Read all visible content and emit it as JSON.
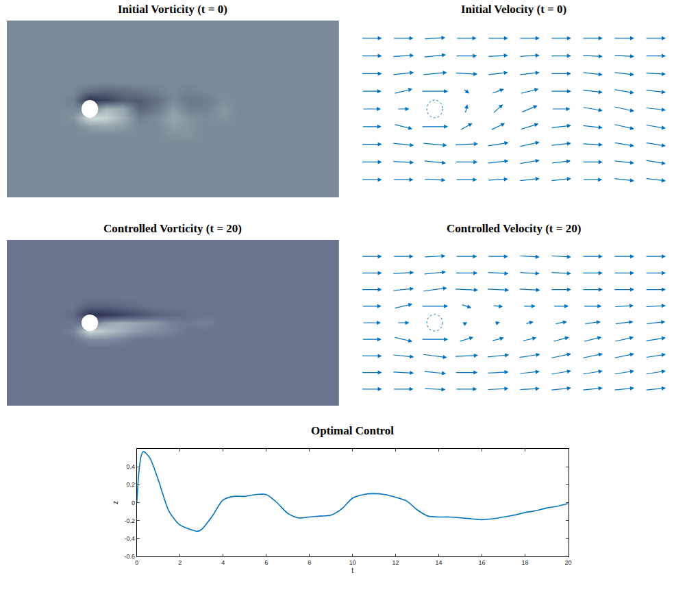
{
  "chart_data": [
    {
      "type": "heatmap",
      "title": "Initial Vorticity (t = 0)",
      "tick_labels": false,
      "color": "#7a8a96",
      "xlim": [
        0,
        20
      ],
      "ylim": [
        -5,
        5
      ],
      "zlim": [
        -1,
        1
      ],
      "cylinder": {
        "x": 5,
        "y": 0,
        "r": 0.5
      },
      "x": [
        0,
        3,
        4,
        5,
        6,
        7,
        8,
        9,
        10,
        11,
        12,
        13,
        14,
        16,
        20
      ],
      "y": [
        -5,
        -2,
        -1.5,
        -1,
        -0.5,
        0,
        0.5,
        1,
        1.5,
        2,
        5
      ],
      "z": [
        [
          0,
          0,
          0,
          0,
          0,
          0,
          0,
          0,
          0,
          0,
          0,
          0,
          0,
          0,
          0
        ],
        [
          0,
          0,
          0,
          0,
          0,
          0,
          0,
          0,
          0,
          0,
          0,
          0,
          0,
          0,
          0
        ],
        [
          0,
          0,
          0,
          0,
          0,
          0,
          0,
          0,
          0.1,
          0.1,
          0,
          0,
          0,
          0,
          0
        ],
        [
          0,
          0,
          0,
          0.2,
          0.3,
          0.2,
          0,
          0,
          0.2,
          0.1,
          0,
          0,
          0,
          0,
          0
        ],
        [
          0,
          0,
          0.1,
          0.9,
          0.8,
          0.4,
          -0.1,
          0,
          0.3,
          0.1,
          0,
          0.1,
          0,
          0,
          0
        ],
        [
          0,
          0,
          0,
          0,
          0.5,
          0.3,
          -0.4,
          -0.2,
          0.2,
          -0.1,
          -0.1,
          0.15,
          0,
          0,
          0
        ],
        [
          0,
          0,
          -0.1,
          -1,
          -0.8,
          -0.5,
          -0.5,
          -0.3,
          0,
          -0.2,
          -0.15,
          0.05,
          0,
          0,
          0
        ],
        [
          0,
          0,
          0,
          -0.3,
          -0.4,
          -0.3,
          -0.2,
          -0.1,
          0,
          -0.1,
          0,
          0,
          0,
          0,
          0
        ],
        [
          0,
          0,
          0,
          0,
          0,
          0,
          0,
          0,
          0,
          0,
          0,
          0,
          0,
          0,
          0
        ],
        [
          0,
          0,
          0,
          0,
          0,
          0,
          0,
          0,
          0,
          0,
          0,
          0,
          0,
          0,
          0
        ],
        [
          0,
          0,
          0,
          0,
          0,
          0,
          0,
          0,
          0,
          0,
          0,
          0,
          0,
          0,
          0
        ]
      ]
    },
    {
      "type": "quiver",
      "title": "Initial Velocity (t = 0)",
      "tick_labels": false,
      "color": "#0072bd",
      "xlim": [
        0,
        20
      ],
      "ylim": [
        -5,
        5
      ],
      "cylinder": {
        "x": 5,
        "y": 0,
        "r": 0.5
      },
      "x": [
        1,
        3,
        5,
        7,
        9,
        11,
        13,
        15,
        17,
        19
      ],
      "y": [
        -4,
        -3,
        -2,
        -1,
        0,
        1,
        2,
        3,
        4
      ],
      "u": [
        [
          1,
          1,
          1.05,
          1.05,
          1,
          1,
          1,
          0.95,
          1,
          1
        ],
        [
          1,
          1.05,
          1.1,
          1.1,
          1.05,
          1,
          0.95,
          1,
          1,
          1
        ],
        [
          1,
          1.05,
          1.2,
          1.15,
          1.05,
          1,
          1,
          1,
          1,
          1
        ],
        [
          0.95,
          0.9,
          1.3,
          0.6,
          0.7,
          0.9,
          1,
          1,
          1,
          1
        ],
        [
          0.9,
          0.6,
          null,
          0.1,
          0.5,
          0.8,
          0.9,
          1,
          1,
          1
        ],
        [
          0.95,
          0.9,
          1.3,
          0.3,
          0.6,
          0.9,
          1,
          1,
          1,
          1
        ],
        [
          1,
          1.05,
          1.2,
          1.1,
          1,
          1,
          1,
          1,
          1,
          1
        ],
        [
          1,
          1.05,
          1.1,
          1.05,
          1,
          1,
          1,
          1,
          1,
          1
        ],
        [
          1,
          1,
          1.05,
          1,
          1,
          1,
          1,
          1,
          1,
          1
        ]
      ],
      "v": [
        [
          0,
          0,
          -0.05,
          0,
          0.05,
          0.1,
          0.1,
          0,
          -0.1,
          -0.1
        ],
        [
          0,
          -0.05,
          -0.1,
          0,
          0.1,
          0.15,
          0.1,
          0,
          -0.1,
          -0.15
        ],
        [
          0,
          -0.1,
          -0.1,
          0.05,
          0.15,
          0.2,
          0.1,
          -0.05,
          -0.15,
          -0.15
        ],
        [
          0,
          -0.2,
          0,
          0.3,
          0.3,
          0.25,
          0.1,
          -0.1,
          -0.2,
          -0.15
        ],
        [
          0,
          0,
          null,
          0.4,
          0.4,
          0.3,
          0,
          -0.15,
          -0.2,
          -0.1
        ],
        [
          0,
          0.2,
          0,
          -0.2,
          0.2,
          0.2,
          0,
          -0.1,
          -0.15,
          -0.1
        ],
        [
          0,
          0.1,
          0.1,
          -0.05,
          0.1,
          0.1,
          0,
          -0.1,
          -0.1,
          -0.05
        ],
        [
          0,
          0.05,
          0.1,
          0,
          0.05,
          0.05,
          0,
          -0.05,
          -0.05,
          0
        ],
        [
          0,
          0,
          0.05,
          0,
          0,
          0,
          0,
          0,
          0,
          0
        ]
      ]
    },
    {
      "type": "heatmap",
      "title": "Controlled Vorticity (t = 20)",
      "tick_labels": false,
      "color": "#6c7590",
      "xlim": [
        0,
        20
      ],
      "ylim": [
        -5,
        5
      ],
      "zlim": [
        -1,
        1
      ],
      "cylinder": {
        "x": 5,
        "y": 0,
        "r": 0.5
      },
      "x": [
        0,
        3,
        4,
        5,
        6,
        7,
        8,
        9,
        10,
        11,
        12,
        13,
        14,
        16,
        20
      ],
      "y": [
        -5,
        -2,
        -1.5,
        -1,
        -0.5,
        0,
        0.5,
        1,
        1.5,
        2,
        5
      ],
      "z": [
        [
          0,
          0,
          0,
          0,
          0,
          0,
          0,
          0,
          0,
          0,
          0,
          0,
          0,
          0,
          0
        ],
        [
          0,
          0,
          0,
          0,
          0,
          0,
          0,
          0,
          0,
          0,
          0,
          0,
          0,
          0,
          0
        ],
        [
          0,
          0,
          0,
          0,
          0,
          0,
          0,
          0,
          0,
          0,
          0,
          0,
          0,
          0,
          0
        ],
        [
          0,
          0,
          0,
          0.2,
          0.2,
          0.1,
          0,
          0,
          0,
          0,
          0,
          0,
          0,
          0,
          0
        ],
        [
          0,
          0,
          0.1,
          0.9,
          0.7,
          0.5,
          0.3,
          0.2,
          0.1,
          0,
          0,
          0,
          0,
          0,
          0
        ],
        [
          0,
          0,
          0,
          0,
          0.4,
          0.5,
          0.4,
          0.3,
          0.1,
          0.05,
          0.1,
          0,
          0,
          0,
          0
        ],
        [
          0,
          0,
          -0.1,
          -1,
          -0.9,
          -0.7,
          -0.5,
          -0.3,
          -0.15,
          -0.05,
          0,
          0,
          0,
          0,
          0
        ],
        [
          0,
          0,
          0,
          -0.3,
          -0.3,
          -0.2,
          -0.1,
          0,
          0,
          0,
          0,
          0,
          0,
          0,
          0
        ],
        [
          0,
          0,
          0,
          0,
          0,
          0,
          0,
          0,
          0,
          0,
          0,
          0,
          0,
          0,
          0
        ],
        [
          0,
          0,
          0,
          0,
          0,
          0,
          0,
          0,
          0,
          0,
          0,
          0,
          0,
          0,
          0
        ],
        [
          0,
          0,
          0,
          0,
          0,
          0,
          0,
          0,
          0,
          0,
          0,
          0,
          0,
          0,
          0
        ]
      ]
    },
    {
      "type": "quiver",
      "title": "Controlled Velocity (t = 20)",
      "tick_labels": false,
      "color": "#0072bd",
      "xlim": [
        0,
        20
      ],
      "ylim": [
        -5,
        5
      ],
      "cylinder": {
        "x": 5,
        "y": 0,
        "r": 0.5
      },
      "x": [
        1,
        3,
        5,
        7,
        9,
        11,
        13,
        15,
        17,
        19
      ],
      "y": [
        -4,
        -3,
        -2,
        -1,
        0,
        1,
        2,
        3,
        4
      ],
      "u": [
        [
          1,
          1,
          1.05,
          1.05,
          1.05,
          1,
          1,
          1,
          1,
          1
        ],
        [
          1,
          1.05,
          1.1,
          1.1,
          1.05,
          1,
          1,
          1,
          1,
          1
        ],
        [
          1,
          1.05,
          1.2,
          1.15,
          1.1,
          1.05,
          1,
          1,
          1,
          1
        ],
        [
          0.95,
          0.9,
          1.3,
          0.7,
          0.6,
          0.7,
          0.8,
          0.9,
          0.95,
          1
        ],
        [
          0.9,
          0.6,
          null,
          0.1,
          0.2,
          0.4,
          0.6,
          0.8,
          0.9,
          0.95
        ],
        [
          0.95,
          0.9,
          1.3,
          0.5,
          0.5,
          0.6,
          0.75,
          0.9,
          0.95,
          1
        ],
        [
          1,
          1.05,
          1.2,
          1.15,
          1.1,
          1.05,
          1,
          1,
          1,
          1
        ],
        [
          1,
          1.05,
          1.1,
          1.1,
          1.05,
          1,
          1,
          1,
          1,
          1
        ],
        [
          1,
          1,
          1.05,
          1.05,
          1,
          1,
          1,
          1,
          1,
          1
        ]
      ],
      "v": [
        [
          0,
          0,
          -0.05,
          0,
          0.05,
          0.05,
          0.1,
          0.1,
          0.1,
          0.1
        ],
        [
          0,
          -0.05,
          -0.1,
          0,
          0.05,
          0.1,
          0.15,
          0.15,
          0.15,
          0.15
        ],
        [
          0,
          -0.1,
          -0.15,
          0.05,
          0.1,
          0.15,
          0.2,
          0.2,
          0.2,
          0.15
        ],
        [
          0,
          -0.2,
          0,
          0.2,
          0.15,
          0.15,
          0.2,
          0.2,
          0.2,
          0.15
        ],
        [
          0,
          0,
          null,
          0.05,
          0.05,
          0.1,
          0.1,
          0.1,
          0.1,
          0.1
        ],
        [
          0,
          0.2,
          0,
          -0.15,
          -0.05,
          0,
          0,
          0,
          0.05,
          0.05
        ],
        [
          0,
          0.1,
          0.15,
          -0.05,
          -0.05,
          -0.05,
          0,
          0,
          0,
          0
        ],
        [
          0,
          0.05,
          0.1,
          0,
          -0.05,
          -0.05,
          -0.05,
          0,
          0,
          0
        ],
        [
          0,
          0,
          0.05,
          0,
          0,
          -0.05,
          -0.05,
          0,
          0,
          0
        ]
      ]
    },
    {
      "type": "line",
      "title": "Optimal Control",
      "x_label": "t",
      "y_label": "z",
      "color": "#0072bd",
      "xlim": [
        0,
        20
      ],
      "ylim": [
        -0.6,
        0.6
      ],
      "xticks": [
        0,
        2,
        4,
        6,
        8,
        10,
        12,
        14,
        16,
        18,
        20
      ],
      "yticks": [
        -0.6,
        -0.4,
        -0.2,
        0,
        0.2,
        0.4
      ],
      "x": [
        0,
        0.1,
        0.2,
        0.3,
        0.6,
        1,
        1.5,
        2,
        2.5,
        2.8,
        3,
        3.5,
        4,
        4.5,
        5,
        5.5,
        6,
        6.5,
        7,
        7.5,
        8,
        8.5,
        9,
        9.5,
        10,
        10.5,
        11,
        11.5,
        12,
        12.5,
        13,
        13.5,
        14,
        14.5,
        15,
        15.5,
        16,
        16.5,
        17,
        17.5,
        18,
        18.5,
        19,
        19.5,
        20
      ],
      "values": [
        0,
        0.35,
        0.52,
        0.57,
        0.5,
        0.25,
        -0.1,
        -0.25,
        -0.3,
        -0.32,
        -0.3,
        -0.15,
        0.03,
        0.07,
        0.07,
        0.09,
        0.09,
        0,
        -0.12,
        -0.17,
        -0.16,
        -0.15,
        -0.14,
        -0.07,
        0.05,
        0.09,
        0.1,
        0.09,
        0.06,
        0.02,
        -0.08,
        -0.15,
        -0.16,
        -0.16,
        -0.17,
        -0.18,
        -0.19,
        -0.18,
        -0.16,
        -0.14,
        -0.11,
        -0.09,
        -0.06,
        -0.04,
        -0.01
      ]
    }
  ]
}
